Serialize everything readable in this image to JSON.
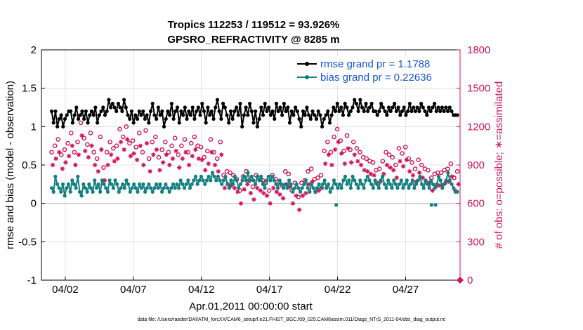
{
  "chart_data": {
    "type": "line",
    "title_line1": "Tropics 112253 / 119512 = 93.926%",
    "title_line2": "GPSRO_REFRACTIVITY @ 8285 m",
    "xlabel": "Apr.01,2011 00:00:00 start",
    "ylabel_left": "rmse and bias (model - observation)",
    "ylabel_right": "# of obs: o=possible; ∗=assimilated",
    "x_range": [
      0.25,
      31.0
    ],
    "ylim_left": [
      -1,
      2
    ],
    "ylim_right": [
      0,
      1800
    ],
    "x_ticks": [
      {
        "value": 2,
        "label": "04/02"
      },
      {
        "value": 7,
        "label": "04/07"
      },
      {
        "value": 12,
        "label": "04/12"
      },
      {
        "value": 17,
        "label": "04/17"
      },
      {
        "value": 22,
        "label": "04/22"
      },
      {
        "value": 27,
        "label": "04/27"
      }
    ],
    "y_ticks_left": [
      {
        "value": 2,
        "label": "2"
      },
      {
        "value": 1.5,
        "label": "1.5"
      },
      {
        "value": 1,
        "label": "1"
      },
      {
        "value": 0.5,
        "label": "0.5"
      },
      {
        "value": 0,
        "label": "0"
      },
      {
        "value": -0.5,
        "label": "-0.5"
      },
      {
        "value": -1,
        "label": "-1"
      }
    ],
    "y_ticks_right": [
      {
        "value": 1800,
        "label": "1800"
      },
      {
        "value": 1500,
        "label": "1500"
      },
      {
        "value": 1200,
        "label": "1200"
      },
      {
        "value": 900,
        "label": "900"
      },
      {
        "value": 600,
        "label": "600"
      },
      {
        "value": 300,
        "label": "300"
      },
      {
        "value": 0,
        "label": "0"
      }
    ],
    "legend": [
      {
        "name": "rmse",
        "label": "rmse grand pr = 1.1788",
        "color": "#000000"
      },
      {
        "name": "bias",
        "label": "bias grand pr = 0.22636",
        "color": "#128080"
      }
    ],
    "rmse": [
      1.2,
      1.05,
      1.2,
      1.0,
      1.1,
      1.15,
      1.0,
      1.1,
      1.15,
      1.2,
      1.2,
      1.05,
      1.15,
      1.25,
      1.1,
      1.15,
      1.2,
      1.1,
      1.2,
      1.05,
      1.15,
      1.2,
      1.15,
      1.25,
      1.05,
      1.15,
      1.2,
      1.25,
      1.15,
      1.2,
      1.35,
      1.25,
      1.3,
      1.25,
      1.2,
      1.3,
      1.25,
      1.2,
      1.35,
      1.25,
      1.15,
      1.1,
      1.2,
      1.05,
      1.15,
      1.1,
      1.2,
      1.15,
      1.2,
      1.1,
      1.15,
      1.05,
      1.2,
      1.3,
      1.15,
      1.1,
      1.25,
      1.15,
      1.2,
      1.0,
      1.1,
      1.2,
      1.15,
      1.3,
      1.1,
      1.2,
      1.25,
      1.05,
      1.2,
      1.15,
      1.25,
      1.1,
      1.2,
      1.15,
      1.25,
      1.1,
      1.2,
      1.25,
      1.15,
      1.3,
      1.2,
      1.05,
      1.25,
      1.15,
      1.2,
      1.1,
      1.25,
      1.35,
      1.2,
      1.1,
      1.3,
      1.25,
      1.15,
      1.05,
      1.2,
      1.1,
      1.2,
      1.25,
      1.15,
      1.3,
      1.0,
      1.15,
      1.25,
      1.15,
      1.3,
      1.2,
      1.05,
      1.2,
      1.0,
      1.1,
      1.25,
      1.15,
      1.3,
      1.2,
      1.25,
      1.15,
      1.2,
      1.1,
      1.3,
      1.2,
      1.25,
      1.15,
      1.3,
      1.2,
      1.25,
      1.05,
      1.2,
      1.15,
      1.25,
      1.2,
      1.1,
      1.0,
      1.2,
      1.15,
      1.25,
      1.15,
      1.1,
      1.2,
      1.15,
      1.1,
      1.2,
      1.15,
      1.0,
      1.1,
      1.15,
      1.2,
      1.05,
      1.15,
      1.25,
      1.2,
      1.3,
      1.2,
      1.25,
      1.15,
      1.3,
      1.25,
      1.15,
      1.2,
      1.25,
      1.35,
      1.3,
      1.2,
      1.35,
      1.25,
      1.2,
      1.3,
      1.2,
      1.25,
      1.3,
      1.2,
      1.2,
      1.15,
      1.2,
      1.3,
      1.25,
      1.2,
      1.15,
      1.25,
      1.2,
      1.25,
      1.3,
      1.2,
      1.25,
      1.15,
      1.2,
      1.25,
      1.15,
      1.2,
      1.3,
      1.2,
      1.25,
      1.2,
      1.25,
      1.2,
      1.3,
      1.25,
      1.2,
      1.15,
      1.25,
      1.2,
      1.25,
      1.3,
      1.2,
      1.25,
      1.2,
      1.25,
      1.2,
      1.25,
      1.2,
      1.25,
      1.2,
      1.15,
      1.15,
      1.15
    ],
    "bias": [
      0.2,
      0.15,
      0.35,
      0.25,
      0.2,
      0.15,
      0.25,
      0.1,
      0.2,
      0.25,
      0.15,
      0.3,
      0.25,
      0.2,
      0.35,
      0.15,
      0.1,
      0.25,
      0.2,
      0.15,
      0.25,
      0.2,
      0.15,
      0.3,
      0.2,
      0.25,
      0.15,
      0.3,
      0.25,
      0.2,
      0.15,
      0.3,
      0.25,
      0.2,
      0.3,
      0.25,
      0.15,
      0.2,
      0.25,
      0.2,
      0.3,
      0.25,
      0.15,
      0.2,
      0.25,
      0.2,
      0.15,
      0.25,
      0.2,
      0.25,
      0.15,
      0.2,
      0.25,
      0.2,
      0.15,
      0.2,
      0.25,
      0.2,
      0.25,
      0.15,
      0.2,
      0.25,
      0.2,
      0.15,
      0.2,
      0.25,
      0.2,
      0.25,
      0.2,
      0.3,
      0.25,
      0.2,
      0.25,
      0.3,
      0.2,
      0.25,
      0.3,
      0.35,
      0.25,
      0.3,
      0.35,
      0.3,
      0.25,
      0.3,
      0.35,
      0.3,
      0.4,
      0.35,
      0.3,
      0.35,
      0.3,
      0.25,
      0.3,
      0.35,
      0.25,
      0.2,
      0.3,
      0.25,
      0.35,
      0.3,
      0.2,
      0.25,
      0.3,
      0.35,
      0.3,
      0.4,
      0.3,
      0.35,
      0.3,
      0.25,
      0.35,
      0.3,
      0.35,
      0.25,
      0.2,
      0.3,
      0.35,
      0.3,
      0.35,
      0.3,
      0.25,
      0.2,
      0.3,
      0.25,
      0.2,
      0.25,
      0.2,
      0.3,
      0.25,
      0.15,
      0.2,
      0.25,
      0.2,
      0.15,
      0.2,
      0.25,
      0.3,
      0.2,
      0.15,
      0.25,
      0.2,
      0.15,
      0.2,
      0.25,
      0.2,
      0.25,
      0.3,
      0.2,
      0.25,
      0.15,
      0.2,
      0.3,
      0.25,
      0.2,
      0.25,
      0.2,
      0.3,
      0.35,
      0.25,
      0.3,
      0.2,
      0.35,
      0.3,
      0.25,
      0.2,
      0.3,
      0.25,
      0.2,
      0.3,
      0.35,
      0.3,
      0.25,
      0.2,
      0.3,
      0.25,
      0.2,
      0.3,
      0.35,
      0.25,
      0.2,
      0.3,
      0.25,
      0.2,
      0.3,
      0.25,
      0.2,
      0.25,
      0.3,
      0.2,
      0.25,
      0.3,
      0.2,
      0.25,
      0.3,
      0.2,
      0.25,
      0.3,
      0.35,
      0.25,
      0.2,
      0.3,
      0.25,
      0.2,
      0.3,
      0.25,
      0.2,
      0.25,
      0.35,
      0.3,
      0.2,
      0.25,
      0.3,
      0.4,
      0.3,
      0.25,
      0.2,
      0.15,
      0.15
    ],
    "bias_extra_lows": [
      {
        "x": 21.9,
        "y": -0.02
      },
      {
        "x": 28.9,
        "y": -0.02
      },
      {
        "x": 29.2,
        "y": -0.02
      }
    ],
    "possible_obs": [
      1000,
      1050,
      1100,
      980,
      1020,
      1070,
      1150,
      1000,
      1080,
      1230,
      1110,
      1060,
      1150,
      1000,
      950,
      1120,
      880,
      1000,
      1080,
      1030,
      1050,
      1180,
      1120,
      1200,
      1070,
      1090,
      1040,
      1150,
      1000,
      1170,
      950,
      1080,
      1120,
      960,
      1020,
      1080,
      1000,
      1050,
      1110,
      980,
      1050,
      1100,
      1000,
      1070,
      1120,
      1050,
      1040,
      960,
      1010,
      1100,
      1000,
      950,
      1080,
      820,
      850,
      840,
      820,
      790,
      700,
      810,
      850,
      780,
      730,
      820,
      800,
      780,
      760,
      700,
      820,
      790,
      770,
      740,
      850,
      830,
      700,
      760,
      650,
      760,
      780,
      850,
      870,
      790,
      800,
      820,
      1010,
      1080,
      1000,
      1120,
      1180,
      1090,
      1010,
      1130,
      1020,
      1080,
      1030,
      1000,
      960,
      950,
      930,
      920,
      860,
      870,
      930,
      1000,
      980,
      960,
      900,
      1030,
      990,
      1040,
      950,
      920,
      870,
      940,
      900,
      870,
      860,
      800,
      830,
      840,
      840,
      860,
      870,
      910,
      800,
      850
    ],
    "assimilated_obs": [
      900,
      950,
      1000,
      870,
      920,
      970,
      1050,
      900,
      980,
      1130,
      1010,
      960,
      1050,
      900,
      850,
      1020,
      780,
      900,
      980,
      930,
      950,
      1080,
      1020,
      1100,
      970,
      990,
      940,
      1050,
      900,
      1070,
      850,
      980,
      1020,
      860,
      920,
      980,
      900,
      950,
      1010,
      880,
      950,
      1000,
      900,
      970,
      1020,
      950,
      940,
      860,
      910,
      1000,
      900,
      850,
      980,
      720,
      750,
      740,
      720,
      690,
      600,
      710,
      750,
      680,
      630,
      720,
      700,
      680,
      660,
      600,
      720,
      690,
      670,
      640,
      750,
      730,
      600,
      660,
      550,
      660,
      680,
      750,
      770,
      690,
      700,
      720,
      910,
      980,
      900,
      1020,
      1080,
      990,
      910,
      1030,
      920,
      980,
      930,
      900,
      860,
      850,
      830,
      820,
      760,
      770,
      830,
      900,
      880,
      860,
      800,
      930,
      890,
      940,
      850,
      820,
      770,
      840,
      800,
      770,
      760,
      700,
      730,
      740,
      740,
      760,
      770,
      810,
      700,
      750
    ],
    "right_edge_zero_marker": "0"
  },
  "footer_text": "data file: /Users/raeder/DAI/ATM_forcXX/CAM6_setup/f.e21.FHIST_BGC.f09_025.CAM6assim.011/Diags_NTrS_2011-04/obs_diag_output.nc",
  "colors": {
    "rmse": "#000000",
    "bias": "#128080",
    "obs": "#d0145a",
    "grid": "#dcdcdc",
    "zero_line": "#bdbdbd",
    "legend_text": "#1656d8"
  }
}
